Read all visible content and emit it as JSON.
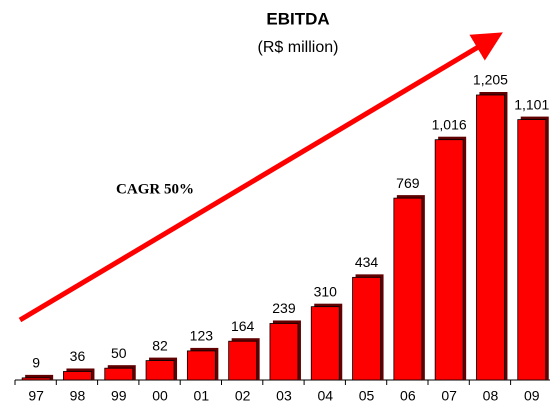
{
  "chart_data": {
    "type": "bar",
    "title": "EBITDA",
    "subtitle": "(R$ million)",
    "annotation": "CAGR 50%",
    "categories": [
      "97",
      "98",
      "99",
      "00",
      "01",
      "02",
      "03",
      "04",
      "05",
      "06",
      "07",
      "08",
      "09"
    ],
    "values": [
      9,
      36,
      50,
      82,
      123,
      164,
      239,
      310,
      434,
      769,
      1016,
      1205,
      1101
    ],
    "value_labels": [
      "9",
      "36",
      "50",
      "82",
      "123",
      "164",
      "239",
      "310",
      "434",
      "769",
      "1,016",
      "1,205",
      "1,101"
    ],
    "color": "#ff0000"
  }
}
